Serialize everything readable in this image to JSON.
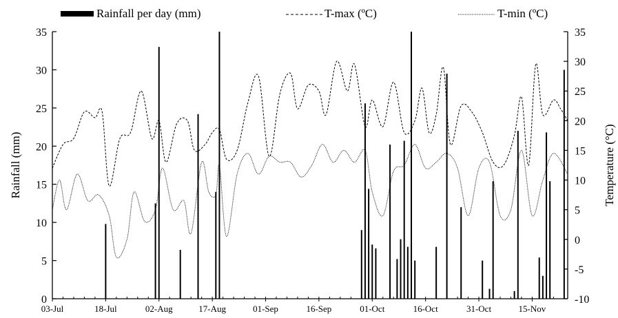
{
  "chart_data": {
    "type": "bar+line",
    "title": "",
    "legend": {
      "placement": "top",
      "entries": [
        "Rainfall per day (mm)",
        "T-max (ºC)",
        "T-min (ºC)"
      ]
    },
    "grid": false,
    "x": {
      "start": "2014-07-03",
      "end": "2014-11-25",
      "tick_labels": [
        "03-Jul",
        "18-Jul",
        "02-Aug",
        "17-Aug",
        "01-Sep",
        "16-Sep",
        "01-Oct",
        "16-Oct",
        "31-Oct",
        "15-Nov"
      ]
    },
    "y_left": {
      "label": "Rainfall (mm)",
      "min": 0,
      "max": 35,
      "ticks": [
        0,
        5,
        10,
        15,
        20,
        25,
        30,
        35
      ]
    },
    "y_right": {
      "label": "Temperature (°C)",
      "min": -10,
      "max": 35,
      "ticks": [
        -10,
        -5,
        0,
        5,
        10,
        15,
        20,
        25,
        30,
        35
      ]
    },
    "series": [
      {
        "name": "Rainfall per day (mm)",
        "type": "bar",
        "axis": "left",
        "color": "#000000",
        "points": [
          [
            "2014-07-18",
            9.8
          ],
          [
            "2014-08-01",
            12.5
          ],
          [
            "2014-08-02",
            33
          ],
          [
            "2014-08-08",
            6.4
          ],
          [
            "2014-08-13",
            24.2
          ],
          [
            "2014-08-18",
            14.0
          ],
          [
            "2014-08-19",
            35
          ],
          [
            "2014-09-28",
            9.0
          ],
          [
            "2014-09-29",
            25.6
          ],
          [
            "2014-09-30",
            14.4
          ],
          [
            "2014-10-01",
            7.1
          ],
          [
            "2014-10-02",
            6.6
          ],
          [
            "2014-10-06",
            20.2
          ],
          [
            "2014-10-08",
            5.2
          ],
          [
            "2014-10-09",
            7.8
          ],
          [
            "2014-10-10",
            20.7
          ],
          [
            "2014-10-11",
            6.8
          ],
          [
            "2014-10-12",
            35
          ],
          [
            "2014-10-13",
            5.0
          ],
          [
            "2014-10-19",
            6.8
          ],
          [
            "2014-10-22",
            29.5
          ],
          [
            "2014-10-26",
            12.0
          ],
          [
            "2014-11-01",
            5.0
          ],
          [
            "2014-11-03",
            1.3
          ],
          [
            "2014-11-04",
            15.4
          ],
          [
            "2014-11-10",
            1.0
          ],
          [
            "2014-11-11",
            22.0
          ],
          [
            "2014-11-17",
            5.4
          ],
          [
            "2014-11-18",
            3.0
          ],
          [
            "2014-11-19",
            21.8
          ],
          [
            "2014-11-20",
            15.4
          ],
          [
            "2014-11-24",
            30.0
          ]
        ]
      },
      {
        "name": "T-max (ºC)",
        "type": "line",
        "axis": "right",
        "color": "#000000",
        "dash": "dashed",
        "points": [
          [
            "2014-07-03",
            12
          ],
          [
            "2014-07-06",
            16
          ],
          [
            "2014-07-09",
            17
          ],
          [
            "2014-07-12",
            21.5
          ],
          [
            "2014-07-15",
            20.5
          ],
          [
            "2014-07-17",
            21.5
          ],
          [
            "2014-07-19",
            9
          ],
          [
            "2014-07-22",
            17
          ],
          [
            "2014-07-25",
            18
          ],
          [
            "2014-07-28",
            25
          ],
          [
            "2014-07-31",
            17
          ],
          [
            "2014-08-02",
            20
          ],
          [
            "2014-08-04",
            13
          ],
          [
            "2014-08-07",
            19.5
          ],
          [
            "2014-08-10",
            20
          ],
          [
            "2014-08-12",
            15
          ],
          [
            "2014-08-15",
            16
          ],
          [
            "2014-08-17",
            18
          ],
          [
            "2014-08-19",
            18.5
          ],
          [
            "2014-08-21",
            13.5
          ],
          [
            "2014-08-24",
            15
          ],
          [
            "2014-08-27",
            23
          ],
          [
            "2014-08-30",
            27.5
          ],
          [
            "2014-09-02",
            14
          ],
          [
            "2014-09-05",
            24.5
          ],
          [
            "2014-09-08",
            28
          ],
          [
            "2014-09-10",
            22
          ],
          [
            "2014-09-13",
            26
          ],
          [
            "2014-09-16",
            25
          ],
          [
            "2014-09-18",
            21
          ],
          [
            "2014-09-21",
            30
          ],
          [
            "2014-09-24",
            25
          ],
          [
            "2014-09-26",
            29.5
          ],
          [
            "2014-09-29",
            19
          ],
          [
            "2014-10-01",
            23.5
          ],
          [
            "2014-10-04",
            19
          ],
          [
            "2014-10-07",
            26.5
          ],
          [
            "2014-10-10",
            18
          ],
          [
            "2014-10-13",
            20
          ],
          [
            "2014-10-15",
            25.5
          ],
          [
            "2014-10-17",
            18
          ],
          [
            "2014-10-19",
            21
          ],
          [
            "2014-10-21",
            29
          ],
          [
            "2014-10-23",
            16
          ],
          [
            "2014-10-26",
            22.5
          ],
          [
            "2014-10-29",
            21.5
          ],
          [
            "2014-11-01",
            18
          ],
          [
            "2014-11-04",
            13
          ],
          [
            "2014-11-07",
            12.5
          ],
          [
            "2014-11-10",
            17.5
          ],
          [
            "2014-11-12",
            24
          ],
          [
            "2014-11-14",
            12.5
          ],
          [
            "2014-11-16",
            29.5
          ],
          [
            "2014-11-18",
            21
          ],
          [
            "2014-11-21",
            23.5
          ],
          [
            "2014-11-23",
            22
          ],
          [
            "2014-11-25",
            20
          ]
        ]
      },
      {
        "name": "T-min (ºC)",
        "type": "line",
        "axis": "right",
        "color": "#000000",
        "dash": "dotted",
        "points": [
          [
            "2014-07-03",
            5
          ],
          [
            "2014-07-05",
            10
          ],
          [
            "2014-07-07",
            5
          ],
          [
            "2014-07-10",
            11
          ],
          [
            "2014-07-13",
            6.5
          ],
          [
            "2014-07-16",
            7.5
          ],
          [
            "2014-07-19",
            4
          ],
          [
            "2014-07-21",
            -3
          ],
          [
            "2014-07-24",
            0
          ],
          [
            "2014-07-26",
            8
          ],
          [
            "2014-07-29",
            3
          ],
          [
            "2014-08-01",
            5
          ],
          [
            "2014-08-03",
            12
          ],
          [
            "2014-08-06",
            5
          ],
          [
            "2014-08-09",
            6.5
          ],
          [
            "2014-08-11",
            1
          ],
          [
            "2014-08-14",
            13
          ],
          [
            "2014-08-16",
            8
          ],
          [
            "2014-08-18",
            7.5
          ],
          [
            "2014-08-19",
            12.5
          ],
          [
            "2014-08-21",
            0.5
          ],
          [
            "2014-08-24",
            11
          ],
          [
            "2014-08-27",
            14.5
          ],
          [
            "2014-08-30",
            11
          ],
          [
            "2014-09-02",
            14
          ],
          [
            "2014-09-05",
            13
          ],
          [
            "2014-09-08",
            13
          ],
          [
            "2014-09-11",
            10.5
          ],
          [
            "2014-09-14",
            12.5
          ],
          [
            "2014-09-17",
            16
          ],
          [
            "2014-09-20",
            13
          ],
          [
            "2014-09-23",
            15
          ],
          [
            "2014-09-26",
            13
          ],
          [
            "2014-09-29",
            15
          ],
          [
            "2014-10-01",
            8
          ],
          [
            "2014-10-04",
            4
          ],
          [
            "2014-10-07",
            11.5
          ],
          [
            "2014-10-10",
            12.5
          ],
          [
            "2014-10-13",
            16
          ],
          [
            "2014-10-16",
            12
          ],
          [
            "2014-10-19",
            13
          ],
          [
            "2014-10-22",
            14.5
          ],
          [
            "2014-10-25",
            12
          ],
          [
            "2014-10-28",
            4
          ],
          [
            "2014-10-31",
            12
          ],
          [
            "2014-11-03",
            13
          ],
          [
            "2014-11-06",
            4
          ],
          [
            "2014-11-09",
            5
          ],
          [
            "2014-11-12",
            15
          ],
          [
            "2014-11-15",
            4
          ],
          [
            "2014-11-18",
            10
          ],
          [
            "2014-11-21",
            14.5
          ],
          [
            "2014-11-25",
            11
          ]
        ]
      }
    ]
  }
}
